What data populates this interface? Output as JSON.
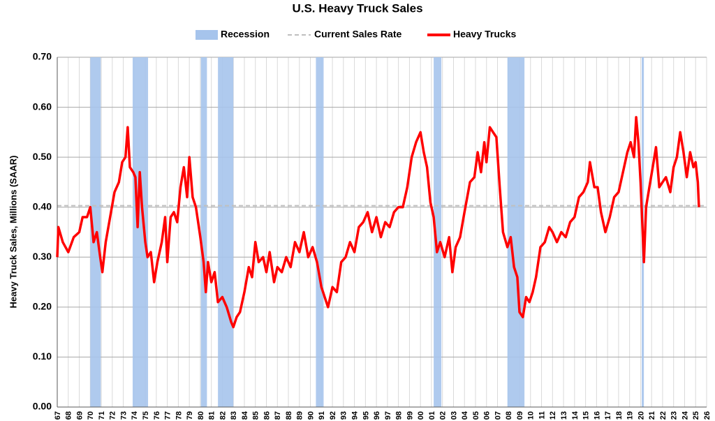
{
  "chart_data": {
    "type": "line",
    "title": "U.S. Heavy Truck Sales",
    "y_label": "Heavy Truck Sales, Millions (SAAR)",
    "xlim": [
      1967,
      2026
    ],
    "ylim": [
      0,
      0.7
    ],
    "yticks": [
      {
        "value": 0,
        "label": "0.00"
      },
      {
        "value": 0.1,
        "label": "0.10"
      },
      {
        "value": 0.2,
        "label": "0.20"
      },
      {
        "value": 0.3,
        "label": "0.30"
      },
      {
        "value": 0.4,
        "label": "0.40"
      },
      {
        "value": 0.5,
        "label": "0.50"
      },
      {
        "value": 0.6,
        "label": "0.60"
      },
      {
        "value": 0.7,
        "label": "0.70"
      }
    ],
    "xticks": [
      {
        "value": 1967,
        "label": "67"
      },
      {
        "value": 1968,
        "label": "68"
      },
      {
        "value": 1969,
        "label": "69"
      },
      {
        "value": 1970,
        "label": "70"
      },
      {
        "value": 1971,
        "label": "71"
      },
      {
        "value": 1972,
        "label": "72"
      },
      {
        "value": 1973,
        "label": "73"
      },
      {
        "value": 1974,
        "label": "74"
      },
      {
        "value": 1975,
        "label": "75"
      },
      {
        "value": 1976,
        "label": "76"
      },
      {
        "value": 1977,
        "label": "77"
      },
      {
        "value": 1978,
        "label": "78"
      },
      {
        "value": 1979,
        "label": "79"
      },
      {
        "value": 1980,
        "label": "80"
      },
      {
        "value": 1981,
        "label": "81"
      },
      {
        "value": 1982,
        "label": "82"
      },
      {
        "value": 1983,
        "label": "83"
      },
      {
        "value": 1984,
        "label": "84"
      },
      {
        "value": 1985,
        "label": "85"
      },
      {
        "value": 1986,
        "label": "86"
      },
      {
        "value": 1987,
        "label": "87"
      },
      {
        "value": 1988,
        "label": "88"
      },
      {
        "value": 1989,
        "label": "89"
      },
      {
        "value": 1990,
        "label": "90"
      },
      {
        "value": 1991,
        "label": "91"
      },
      {
        "value": 1992,
        "label": "92"
      },
      {
        "value": 1993,
        "label": "93"
      },
      {
        "value": 1994,
        "label": "94"
      },
      {
        "value": 1995,
        "label": "95"
      },
      {
        "value": 1996,
        "label": "96"
      },
      {
        "value": 1997,
        "label": "97"
      },
      {
        "value": 1998,
        "label": "98"
      },
      {
        "value": 1999,
        "label": "99"
      },
      {
        "value": 2000,
        "label": "00"
      },
      {
        "value": 2001,
        "label": "01"
      },
      {
        "value": 2002,
        "label": "02"
      },
      {
        "value": 2003,
        "label": "03"
      },
      {
        "value": 2004,
        "label": "04"
      },
      {
        "value": 2005,
        "label": "05"
      },
      {
        "value": 2006,
        "label": "06"
      },
      {
        "value": 2007,
        "label": "07"
      },
      {
        "value": 2008,
        "label": "08"
      },
      {
        "value": 2009,
        "label": "09"
      },
      {
        "value": 2010,
        "label": "10"
      },
      {
        "value": 2011,
        "label": "11"
      },
      {
        "value": 2012,
        "label": "12"
      },
      {
        "value": 2013,
        "label": "13"
      },
      {
        "value": 2014,
        "label": "14"
      },
      {
        "value": 2015,
        "label": "15"
      },
      {
        "value": 2016,
        "label": "16"
      },
      {
        "value": 2017,
        "label": "17"
      },
      {
        "value": 2018,
        "label": "18"
      },
      {
        "value": 2019,
        "label": "19"
      },
      {
        "value": 2020,
        "label": "20"
      },
      {
        "value": 2021,
        "label": "21"
      },
      {
        "value": 2022,
        "label": "22"
      },
      {
        "value": 2023,
        "label": "23"
      },
      {
        "value": 2024,
        "label": "24"
      },
      {
        "value": 2025,
        "label": "25"
      },
      {
        "value": 2026,
        "label": "26"
      }
    ],
    "grid": true,
    "recessions": {
      "name": "Recession",
      "color": "#a6c4ec",
      "ranges": [
        [
          1970.0,
          1970.95
        ],
        [
          1973.85,
          1975.25
        ],
        [
          1980.05,
          1980.6
        ],
        [
          1981.6,
          1983.0
        ],
        [
          1990.5,
          1991.2
        ],
        [
          2001.2,
          2001.9
        ],
        [
          2007.9,
          2009.45
        ],
        [
          2020.1,
          2020.3
        ]
      ]
    },
    "current_rate": {
      "name": "Current Sales Rate",
      "color": "#bfbfbf",
      "value": 0.403
    },
    "x": [
      1967.0,
      1967.1,
      1967.5,
      1968.0,
      1968.5,
      1969.0,
      1969.3,
      1969.7,
      1970.0,
      1970.3,
      1970.6,
      1970.9,
      1971.1,
      1971.4,
      1971.8,
      1972.2,
      1972.6,
      1972.9,
      1973.2,
      1973.4,
      1973.6,
      1973.9,
      1974.1,
      1974.3,
      1974.5,
      1974.7,
      1975.0,
      1975.2,
      1975.5,
      1975.8,
      1976.1,
      1976.5,
      1976.8,
      1977.0,
      1977.3,
      1977.6,
      1977.9,
      1978.2,
      1978.5,
      1978.8,
      1979.0,
      1979.3,
      1979.6,
      1980.0,
      1980.3,
      1980.5,
      1980.7,
      1981.0,
      1981.3,
      1981.6,
      1982.0,
      1982.4,
      1982.8,
      1983.0,
      1983.3,
      1983.6,
      1984.0,
      1984.4,
      1984.7,
      1985.0,
      1985.3,
      1985.7,
      1986.0,
      1986.3,
      1986.7,
      1987.0,
      1987.4,
      1987.8,
      1988.2,
      1988.6,
      1989.0,
      1989.4,
      1989.8,
      1990.2,
      1990.6,
      1991.0,
      1991.3,
      1991.6,
      1992.0,
      1992.4,
      1992.8,
      1993.2,
      1993.6,
      1994.0,
      1994.4,
      1994.8,
      1995.2,
      1995.6,
      1996.0,
      1996.4,
      1996.8,
      1997.2,
      1997.6,
      1998.0,
      1998.4,
      1998.8,
      1999.2,
      1999.6,
      2000.0,
      2000.3,
      2000.6,
      2000.9,
      2001.2,
      2001.5,
      2001.8,
      2002.2,
      2002.6,
      2002.9,
      2003.2,
      2003.6,
      2004.0,
      2004.5,
      2004.9,
      2005.2,
      2005.5,
      2005.8,
      2006.0,
      2006.3,
      2006.6,
      2006.9,
      2007.2,
      2007.5,
      2007.9,
      2008.2,
      2008.5,
      2008.8,
      2009.0,
      2009.3,
      2009.6,
      2009.9,
      2010.2,
      2010.5,
      2010.9,
      2011.3,
      2011.7,
      2012.0,
      2012.4,
      2012.8,
      2013.2,
      2013.6,
      2014.0,
      2014.4,
      2014.8,
      2015.2,
      2015.4,
      2015.8,
      2016.1,
      2016.4,
      2016.8,
      2017.2,
      2017.6,
      2018.0,
      2018.4,
      2018.8,
      2019.1,
      2019.4,
      2019.6,
      2019.8,
      2020.0,
      2020.3,
      2020.5,
      2020.8,
      2021.1,
      2021.4,
      2021.7,
      2022.0,
      2022.3,
      2022.7,
      2023.0,
      2023.3,
      2023.6,
      2023.9,
      2024.2,
      2024.5,
      2024.8,
      2025.0,
      2025.2,
      2025.3
    ],
    "series": [
      {
        "name": "Heavy Trucks",
        "color": "#ff0000",
        "values": [
          0.3,
          0.36,
          0.33,
          0.31,
          0.34,
          0.35,
          0.38,
          0.38,
          0.4,
          0.33,
          0.35,
          0.3,
          0.27,
          0.33,
          0.38,
          0.43,
          0.45,
          0.49,
          0.5,
          0.56,
          0.48,
          0.47,
          0.46,
          0.36,
          0.47,
          0.4,
          0.33,
          0.3,
          0.31,
          0.25,
          0.29,
          0.33,
          0.38,
          0.29,
          0.38,
          0.39,
          0.37,
          0.44,
          0.48,
          0.42,
          0.5,
          0.42,
          0.4,
          0.34,
          0.29,
          0.23,
          0.29,
          0.25,
          0.27,
          0.21,
          0.22,
          0.2,
          0.17,
          0.16,
          0.18,
          0.19,
          0.23,
          0.28,
          0.26,
          0.33,
          0.29,
          0.3,
          0.27,
          0.31,
          0.25,
          0.28,
          0.27,
          0.3,
          0.28,
          0.33,
          0.31,
          0.35,
          0.3,
          0.32,
          0.29,
          0.24,
          0.22,
          0.2,
          0.24,
          0.23,
          0.29,
          0.3,
          0.33,
          0.31,
          0.36,
          0.37,
          0.39,
          0.35,
          0.38,
          0.34,
          0.37,
          0.36,
          0.39,
          0.4,
          0.4,
          0.44,
          0.5,
          0.53,
          0.55,
          0.51,
          0.48,
          0.41,
          0.38,
          0.31,
          0.33,
          0.3,
          0.34,
          0.27,
          0.32,
          0.34,
          0.39,
          0.45,
          0.46,
          0.51,
          0.47,
          0.53,
          0.49,
          0.56,
          0.55,
          0.54,
          0.44,
          0.35,
          0.32,
          0.34,
          0.28,
          0.26,
          0.19,
          0.18,
          0.22,
          0.21,
          0.23,
          0.26,
          0.32,
          0.33,
          0.36,
          0.35,
          0.33,
          0.35,
          0.34,
          0.37,
          0.38,
          0.42,
          0.43,
          0.45,
          0.49,
          0.44,
          0.44,
          0.39,
          0.35,
          0.38,
          0.42,
          0.43,
          0.47,
          0.51,
          0.53,
          0.5,
          0.58,
          0.53,
          0.45,
          0.29,
          0.4,
          0.44,
          0.48,
          0.52,
          0.44,
          0.45,
          0.46,
          0.43,
          0.48,
          0.5,
          0.55,
          0.51,
          0.46,
          0.51,
          0.48,
          0.49,
          0.45,
          0.4
        ]
      }
    ]
  }
}
